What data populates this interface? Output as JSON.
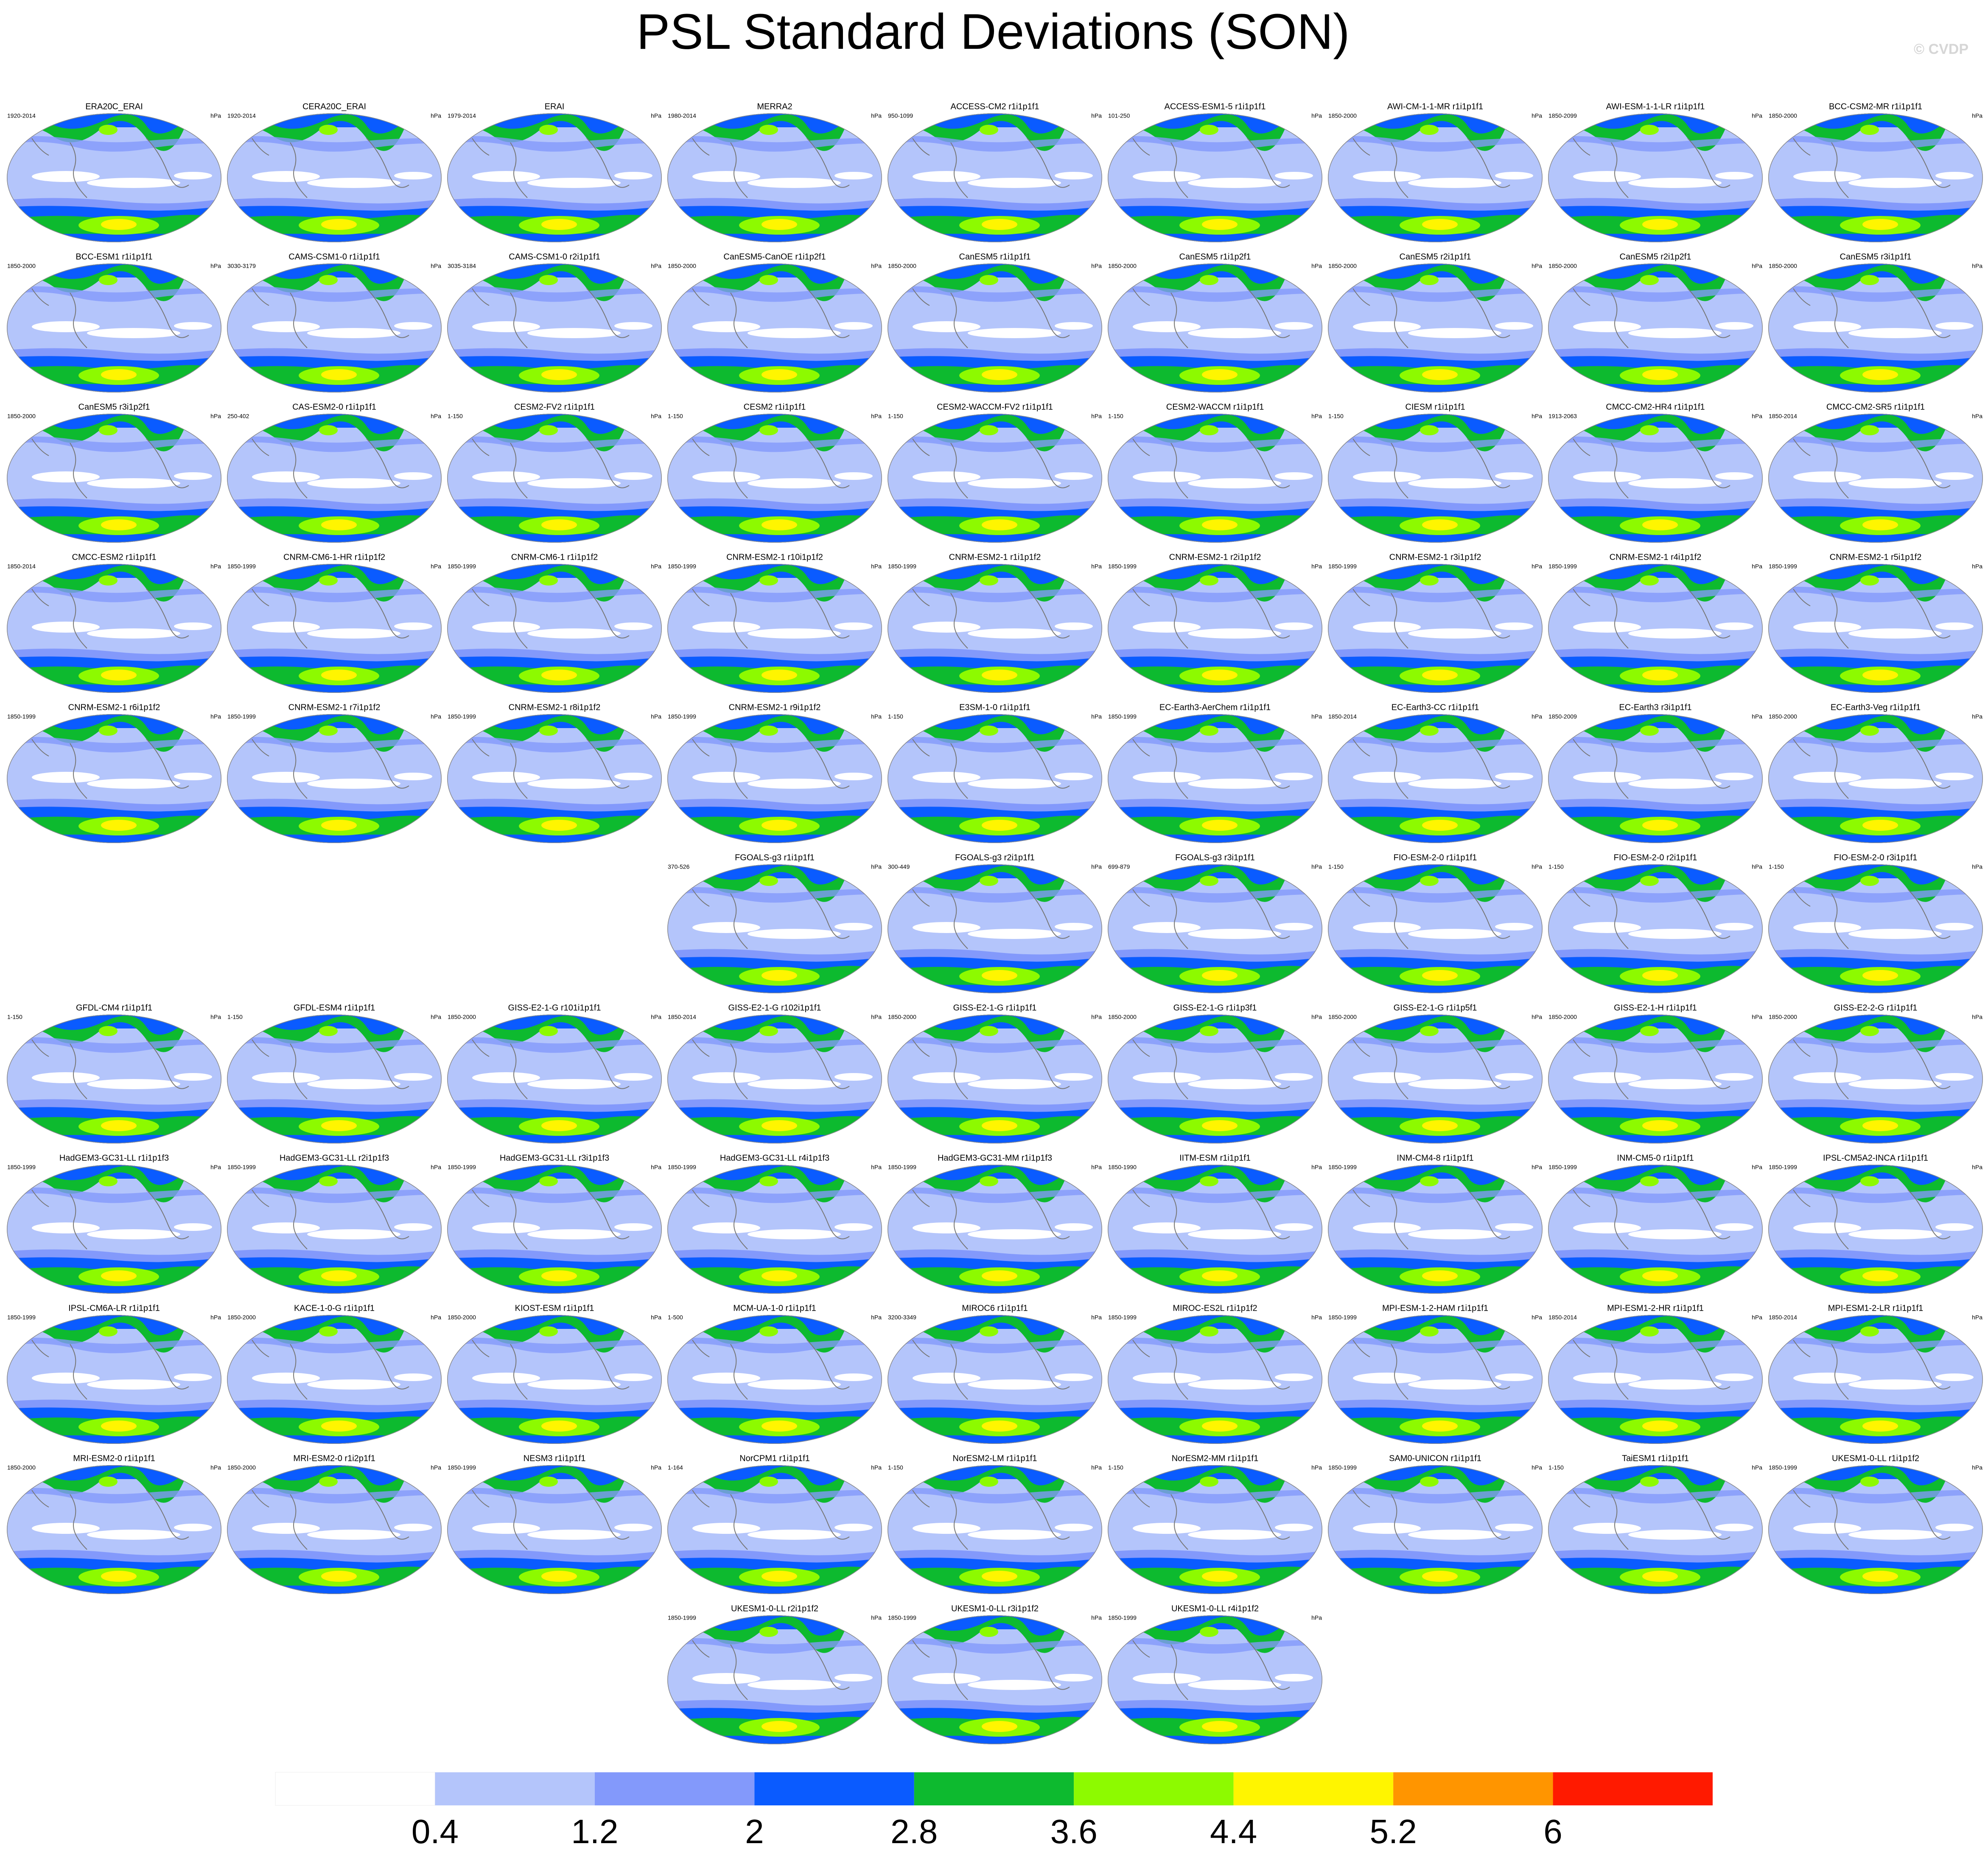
{
  "title": "PSL Standard Deviations (SON)",
  "credit": "© CVDP",
  "units": "hPa",
  "rows": [
    [
      {
        "title": "ERA20C_ERAI",
        "period": "1920-2014"
      },
      {
        "title": "CERA20C_ERAI",
        "period": "1920-2014"
      },
      {
        "title": "ERAI",
        "period": "1979-2014"
      },
      {
        "title": "MERRA2",
        "period": "1980-2014"
      },
      {
        "title": "ACCESS-CM2 r1i1p1f1",
        "period": "950-1099"
      },
      {
        "title": "ACCESS-ESM1-5 r1i1p1f1",
        "period": "101-250"
      },
      {
        "title": "AWI-CM-1-1-MR r1i1p1f1",
        "period": "1850-2000"
      },
      {
        "title": "AWI-ESM-1-1-LR r1i1p1f1",
        "period": "1850-2099"
      },
      {
        "title": "BCC-CSM2-MR r1i1p1f1",
        "period": "1850-2000"
      }
    ],
    [
      {
        "title": "BCC-ESM1 r1i1p1f1",
        "period": "1850-2000"
      },
      {
        "title": "CAMS-CSM1-0 r1i1p1f1",
        "period": "3030-3179"
      },
      {
        "title": "CAMS-CSM1-0 r2i1p1f1",
        "period": "3035-3184"
      },
      {
        "title": "CanESM5-CanOE r1i1p2f1",
        "period": "1850-2000"
      },
      {
        "title": "CanESM5 r1i1p1f1",
        "period": "1850-2000"
      },
      {
        "title": "CanESM5 r1i1p2f1",
        "period": "1850-2000"
      },
      {
        "title": "CanESM5 r2i1p1f1",
        "period": "1850-2000"
      },
      {
        "title": "CanESM5 r2i1p2f1",
        "period": "1850-2000"
      },
      {
        "title": "CanESM5 r3i1p1f1",
        "period": "1850-2000"
      }
    ],
    [
      {
        "title": "CanESM5 r3i1p2f1",
        "period": "1850-2000"
      },
      {
        "title": "CAS-ESM2-0 r1i1p1f1",
        "period": "250-402"
      },
      {
        "title": "CESM2-FV2 r1i1p1f1",
        "period": "1-150"
      },
      {
        "title": "CESM2 r1i1p1f1",
        "period": "1-150"
      },
      {
        "title": "CESM2-WACCM-FV2 r1i1p1f1",
        "period": "1-150"
      },
      {
        "title": "CESM2-WACCM r1i1p1f1",
        "period": "1-150"
      },
      {
        "title": "CIESM r1i1p1f1",
        "period": "1-150"
      },
      {
        "title": "CMCC-CM2-HR4 r1i1p1f1",
        "period": "1913-2063"
      },
      {
        "title": "CMCC-CM2-SR5 r1i1p1f1",
        "period": "1850-2014"
      }
    ],
    [
      {
        "title": "CMCC-ESM2 r1i1p1f1",
        "period": "1850-2014"
      },
      {
        "title": "CNRM-CM6-1-HR r1i1p1f2",
        "period": "1850-1999"
      },
      {
        "title": "CNRM-CM6-1 r1i1p1f2",
        "period": "1850-1999"
      },
      {
        "title": "CNRM-ESM2-1 r10i1p1f2",
        "period": "1850-1999"
      },
      {
        "title": "CNRM-ESM2-1 r1i1p1f2",
        "period": "1850-1999"
      },
      {
        "title": "CNRM-ESM2-1 r2i1p1f2",
        "period": "1850-1999"
      },
      {
        "title": "CNRM-ESM2-1 r3i1p1f2",
        "period": "1850-1999"
      },
      {
        "title": "CNRM-ESM2-1 r4i1p1f2",
        "period": "1850-1999"
      },
      {
        "title": "CNRM-ESM2-1 r5i1p1f2",
        "period": "1850-1999"
      }
    ],
    [
      {
        "title": "CNRM-ESM2-1 r6i1p1f2",
        "period": "1850-1999"
      },
      {
        "title": "CNRM-ESM2-1 r7i1p1f2",
        "period": "1850-1999"
      },
      {
        "title": "CNRM-ESM2-1 r8i1p1f2",
        "period": "1850-1999"
      },
      {
        "title": "CNRM-ESM2-1 r9i1p1f2",
        "period": "1850-1999"
      },
      {
        "title": "E3SM-1-0 r1i1p1f1",
        "period": "1-150"
      },
      {
        "title": "EC-Earth3-AerChem r1i1p1f1",
        "period": "1850-1999"
      },
      {
        "title": "EC-Earth3-CC r1i1p1f1",
        "period": "1850-2014"
      },
      {
        "title": "EC-Earth3 r3i1p1f1",
        "period": "1850-2009"
      },
      {
        "title": "EC-Earth3-Veg r1i1p1f1",
        "period": "1850-2000"
      }
    ],
    [
      {
        "title": "FGOALS-g3 r1i1p1f1",
        "period": "370-526"
      },
      {
        "title": "FGOALS-g3 r2i1p1f1",
        "period": "300-449"
      },
      {
        "title": "FGOALS-g3 r3i1p1f1",
        "period": "699-879"
      },
      {
        "title": "FIO-ESM-2-0 r1i1p1f1",
        "period": "1-150"
      },
      {
        "title": "FIO-ESM-2-0 r2i1p1f1",
        "period": "1-150"
      },
      {
        "title": "FIO-ESM-2-0 r3i1p1f1",
        "period": "1-150"
      }
    ],
    [
      {
        "title": "GFDL-CM4 r1i1p1f1",
        "period": "1-150"
      },
      {
        "title": "GFDL-ESM4 r1i1p1f1",
        "period": "1-150"
      },
      {
        "title": "GISS-E2-1-G r101i1p1f1",
        "period": "1850-2000"
      },
      {
        "title": "GISS-E2-1-G r102i1p1f1",
        "period": "1850-2014"
      },
      {
        "title": "GISS-E2-1-G r1i1p1f1",
        "period": "1850-2000"
      },
      {
        "title": "GISS-E2-1-G r1i1p3f1",
        "period": "1850-2000"
      },
      {
        "title": "GISS-E2-1-G r1i1p5f1",
        "period": "1850-2000"
      },
      {
        "title": "GISS-E2-1-H r1i1p1f1",
        "period": "1850-2000"
      },
      {
        "title": "GISS-E2-2-G r1i1p1f1",
        "period": "1850-2000"
      }
    ],
    [
      {
        "title": "HadGEM3-GC31-LL r1i1p1f3",
        "period": "1850-1999"
      },
      {
        "title": "HadGEM3-GC31-LL r2i1p1f3",
        "period": "1850-1999"
      },
      {
        "title": "HadGEM3-GC31-LL r3i1p1f3",
        "period": "1850-1999"
      },
      {
        "title": "HadGEM3-GC31-LL r4i1p1f3",
        "period": "1850-1999"
      },
      {
        "title": "HadGEM3-GC31-MM r1i1p1f3",
        "period": "1850-1999"
      },
      {
        "title": "IITM-ESM r1i1p1f1",
        "period": "1850-1990"
      },
      {
        "title": "INM-CM4-8 r1i1p1f1",
        "period": "1850-1999"
      },
      {
        "title": "INM-CM5-0 r1i1p1f1",
        "period": "1850-1999"
      },
      {
        "title": "IPSL-CM5A2-INCA r1i1p1f1",
        "period": "1850-1999"
      }
    ],
    [
      {
        "title": "IPSL-CM6A-LR r1i1p1f1",
        "period": "1850-1999"
      },
      {
        "title": "KACE-1-0-G r1i1p1f1",
        "period": "1850-2000"
      },
      {
        "title": "KIOST-ESM r1i1p1f1",
        "period": "1850-2000"
      },
      {
        "title": "MCM-UA-1-0 r1i1p1f1",
        "period": "1-500"
      },
      {
        "title": "MIROC6 r1i1p1f1",
        "period": "3200-3349"
      },
      {
        "title": "MIROC-ES2L r1i1p1f2",
        "period": "1850-1999"
      },
      {
        "title": "MPI-ESM-1-2-HAM r1i1p1f1",
        "period": "1850-1999"
      },
      {
        "title": "MPI-ESM1-2-HR r1i1p1f1",
        "period": "1850-2014"
      },
      {
        "title": "MPI-ESM1-2-LR r1i1p1f1",
        "period": "1850-2014"
      }
    ],
    [
      {
        "title": "MRI-ESM2-0 r1i1p1f1",
        "period": "1850-2000"
      },
      {
        "title": "MRI-ESM2-0 r1i2p1f1",
        "period": "1850-2000"
      },
      {
        "title": "NESM3 r1i1p1f1",
        "period": "1850-1999"
      },
      {
        "title": "NorCPM1 r1i1p1f1",
        "period": "1-164"
      },
      {
        "title": "NorESM2-LM r1i1p1f1",
        "period": "1-150"
      },
      {
        "title": "NorESM2-MM r1i1p1f1",
        "period": "1-150"
      },
      {
        "title": "SAM0-UNICON r1i1p1f1",
        "period": "1850-1999"
      },
      {
        "title": "TaiESM1 r1i1p1f1",
        "period": "1-150"
      },
      {
        "title": "UKESM1-0-LL r1i1p1f2",
        "period": "1850-1999"
      }
    ],
    [
      {
        "title": "UKESM1-0-LL r2i1p1f2",
        "period": "1850-1999"
      },
      {
        "title": "UKESM1-0-LL r3i1p1f2",
        "period": "1850-1999"
      },
      {
        "title": "UKESM1-0-LL r4i1p1f2",
        "period": "1850-1999"
      }
    ]
  ],
  "colorbar": {
    "levels": [
      0.4,
      1.2,
      2,
      2.8,
      3.6,
      4.4,
      5.2,
      6
    ],
    "colors": [
      "#ffffff",
      "#b4c5fb",
      "#8399fb",
      "#0a5bff",
      "#0dba2f",
      "#8dfa00",
      "#fff500",
      "#ff9500",
      "#ff1a00"
    ]
  }
}
